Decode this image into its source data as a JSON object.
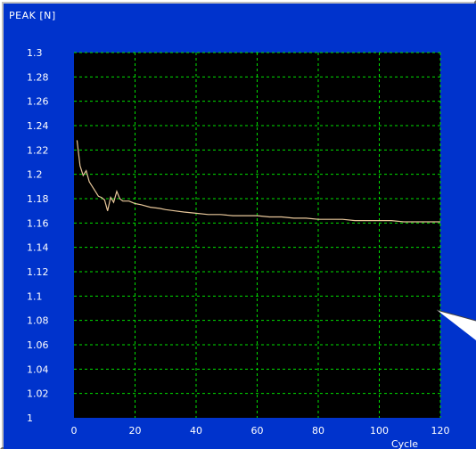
{
  "chart_data": {
    "type": "line",
    "title": "",
    "ylabel": "PEAK [N]",
    "xlabel": "Cycle",
    "xlim": [
      0,
      120
    ],
    "ylim": [
      1,
      1.3
    ],
    "x_ticks": [
      0,
      20,
      40,
      60,
      80,
      100,
      120
    ],
    "x_tick_labels": [
      "0",
      "20",
      "40",
      "60",
      "80",
      "100",
      "120"
    ],
    "y_ticks": [
      1,
      1.02,
      1.04,
      1.06,
      1.08,
      1.1,
      1.12,
      1.14,
      1.16,
      1.18,
      1.2,
      1.22,
      1.24,
      1.26,
      1.28,
      1.3
    ],
    "y_tick_labels": [
      "1",
      "1.02",
      "1.04",
      "1.06",
      "1.08",
      "1.1",
      "1.12",
      "1.14",
      "1.16",
      "1.18",
      "1.2",
      "1.22",
      "1.24",
      "1.26",
      "1.28",
      "1.3"
    ],
    "grid": true,
    "series": [
      {
        "x": [
          1,
          2,
          3,
          4,
          5,
          6,
          7,
          8,
          9,
          10,
          11,
          12,
          13,
          14,
          15,
          16,
          18,
          20,
          22,
          25,
          28,
          30,
          33,
          36,
          40,
          44,
          48,
          52,
          56,
          60,
          64,
          68,
          72,
          76,
          80,
          84,
          88,
          92,
          96,
          100,
          104,
          108,
          112,
          116,
          120
        ],
        "values": [
          1.228,
          1.207,
          1.199,
          1.203,
          1.194,
          1.19,
          1.186,
          1.182,
          1.181,
          1.179,
          1.17,
          1.181,
          1.177,
          1.186,
          1.18,
          1.178,
          1.178,
          1.176,
          1.175,
          1.173,
          1.172,
          1.171,
          1.17,
          1.169,
          1.168,
          1.167,
          1.167,
          1.166,
          1.166,
          1.166,
          1.165,
          1.165,
          1.164,
          1.164,
          1.163,
          1.163,
          1.163,
          1.162,
          1.162,
          1.162,
          1.162,
          1.161,
          1.161,
          1.161,
          1.161
        ]
      }
    ],
    "colors": {
      "background": "#0033cc",
      "plot_area": "#000000",
      "grid": "#00e000",
      "line": "#e8c79a",
      "text": "#ffffff",
      "callout": "#ffffff"
    }
  }
}
